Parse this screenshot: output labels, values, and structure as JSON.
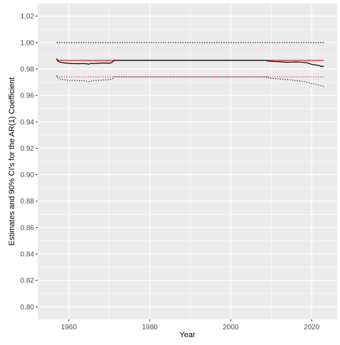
{
  "chart_data": {
    "type": "line",
    "title": "",
    "xlabel": "Year",
    "ylabel": "Estimates and 90% CI's for the AR(1) Coefficient",
    "xlim": [
      1952.3,
      2026.3
    ],
    "ylim": [
      0.7905,
      1.0295
    ],
    "x_ticks": [
      1960,
      1980,
      2000,
      2020
    ],
    "x_tick_labels": [
      "1960",
      "1980",
      "2000",
      "2020"
    ],
    "y_ticks": [
      0.8,
      0.82,
      0.84,
      0.86,
      0.88,
      0.9,
      0.92,
      0.94,
      0.96,
      0.98,
      1.0,
      1.02
    ],
    "y_tick_labels": [
      "0.80",
      "0.82",
      "0.84",
      "0.86",
      "0.88",
      "0.90",
      "0.92",
      "0.94",
      "0.96",
      "0.98",
      "1.00",
      "1.02"
    ],
    "grid": true,
    "background": "#ebebeb",
    "grid_color": "#ffffff",
    "series": [
      {
        "role": "full-sample-estimate",
        "color": "#e41a1c",
        "style": "solid",
        "x": [
          1957,
          2023
        ],
        "y": [
          0.9865,
          0.9865
        ]
      },
      {
        "role": "full-sample-upper-ci",
        "color": "#e41a1c",
        "style": "dotted",
        "x": [
          1957,
          2023
        ],
        "y": [
          1.0,
          1.0
        ]
      },
      {
        "role": "full-sample-lower-ci",
        "color": "#e41a1c",
        "style": "dotted",
        "x": [
          1957,
          2023
        ],
        "y": [
          0.974,
          0.974
        ]
      },
      {
        "role": "recursive-estimate",
        "color": "#000000",
        "style": "solid",
        "x": [
          1957,
          1957.1,
          1957.3,
          1957.6,
          1958,
          1958.5,
          1959,
          1960,
          1961,
          1962,
          1963,
          1964,
          1965,
          1965.5,
          1966,
          1967,
          1968,
          1969,
          1970,
          1970.5,
          1971,
          1971.1,
          1980,
          1990,
          2000,
          2008.9,
          2009,
          2010,
          2011,
          2012,
          2013,
          2014,
          2015,
          2016,
          2017,
          2018,
          2019,
          2019.5,
          2020,
          2021,
          2022,
          2022.5,
          2023
        ],
        "y": [
          0.988,
          0.9868,
          0.986,
          0.9855,
          0.985,
          0.9848,
          0.9845,
          0.9843,
          0.9841,
          0.984,
          0.984,
          0.984,
          0.9837,
          0.9843,
          0.9841,
          0.9843,
          0.9845,
          0.9845,
          0.9843,
          0.9848,
          0.9858,
          0.9865,
          0.9865,
          0.9865,
          0.9865,
          0.9865,
          0.986,
          0.9858,
          0.9856,
          0.9855,
          0.9853,
          0.9851,
          0.9852,
          0.9853,
          0.9852,
          0.985,
          0.9846,
          0.984,
          0.9835,
          0.983,
          0.9825,
          0.9818,
          0.9823
        ]
      },
      {
        "role": "recursive-lower-ci",
        "color": "#000000",
        "style": "dotted",
        "x": [
          1957,
          1957.3,
          1958,
          1959,
          1960,
          1962,
          1964,
          1965,
          1966,
          1968,
          1970,
          1971,
          1971.1,
          1980,
          1990,
          2000,
          2008.9,
          2009,
          2010,
          2012,
          2014,
          2016,
          2017,
          2018,
          2019,
          2020,
          2021,
          2022,
          2023
        ],
        "y": [
          0.975,
          0.973,
          0.9722,
          0.9718,
          0.9714,
          0.9712,
          0.971,
          0.9705,
          0.9712,
          0.9715,
          0.972,
          0.9728,
          0.974,
          0.974,
          0.974,
          0.974,
          0.974,
          0.9735,
          0.9728,
          0.9725,
          0.972,
          0.9712,
          0.971,
          0.9705,
          0.9698,
          0.969,
          0.9683,
          0.9676,
          0.9668
        ]
      },
      {
        "role": "recursive-upper-ci",
        "color": "#000000",
        "style": "dotted",
        "x": [
          1957,
          2023
        ],
        "y": [
          1.0,
          1.0
        ]
      }
    ]
  }
}
